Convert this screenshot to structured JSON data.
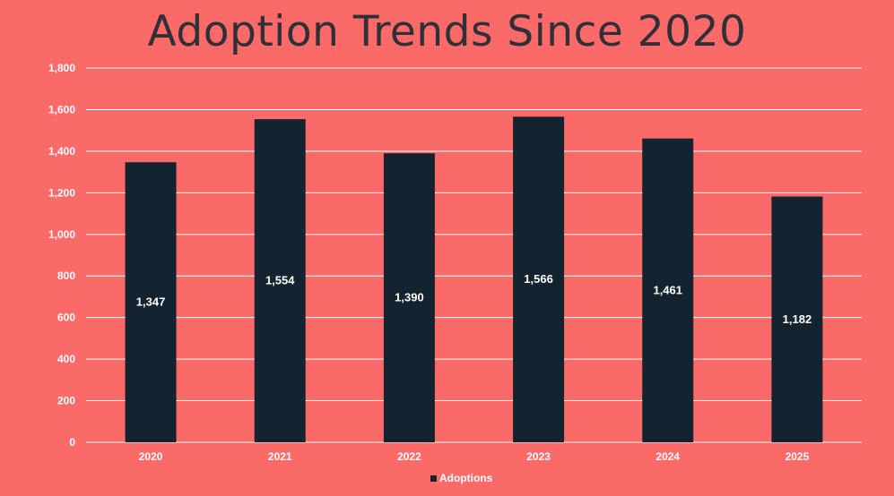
{
  "chart_data": {
    "type": "bar",
    "title": "Adoption Trends Since 2020",
    "categories": [
      "2020",
      "2021",
      "2022",
      "2023",
      "2024",
      "2025"
    ],
    "series": [
      {
        "name": "Adoptions",
        "values": [
          1347,
          1554,
          1390,
          1566,
          1461,
          1182
        ]
      }
    ],
    "data_labels": [
      "1,347",
      "1,554",
      "1,390",
      "1,566",
      "1,461",
      "1,182"
    ],
    "y_ticks": [
      "0",
      "200",
      "400",
      "600",
      "800",
      "1,000",
      "1,200",
      "1,400",
      "1,600",
      "1,800"
    ],
    "ylim": [
      0,
      1800
    ],
    "grid": true,
    "legend_position": "bottom",
    "colors": {
      "background": "#FA6A69",
      "bar": "#132330",
      "grid": "#FFFFFF",
      "title": "#2F3038",
      "text": "#FFFFFF"
    }
  }
}
